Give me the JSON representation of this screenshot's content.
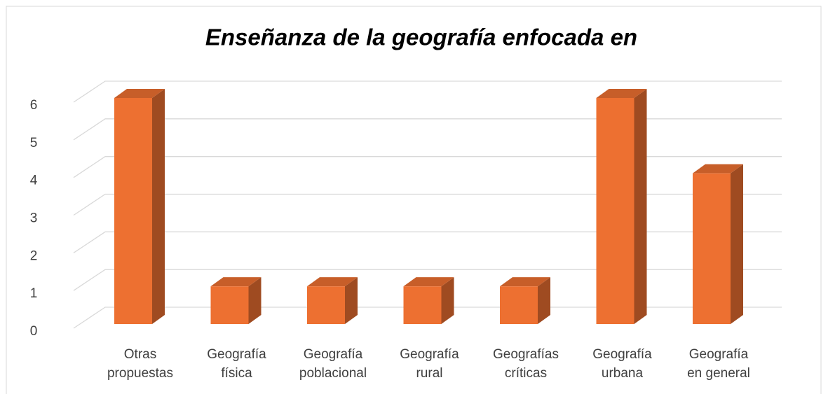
{
  "chart_data": {
    "type": "bar3d",
    "title": "Enseñanza de la geografía enfocada en",
    "categories": [
      "Otras propuestas",
      "Geografía física",
      "Geografía poblacional",
      "Geografía rural",
      "Geografías críticas",
      "Geografía urbana",
      "Geografía en general"
    ],
    "values": [
      6,
      1,
      1,
      1,
      1,
      6,
      4
    ],
    "color": "#ED7031",
    "ylim": [
      0,
      6
    ],
    "yticks": [
      0,
      1,
      2,
      3,
      4,
      5,
      6
    ],
    "grid": true
  }
}
